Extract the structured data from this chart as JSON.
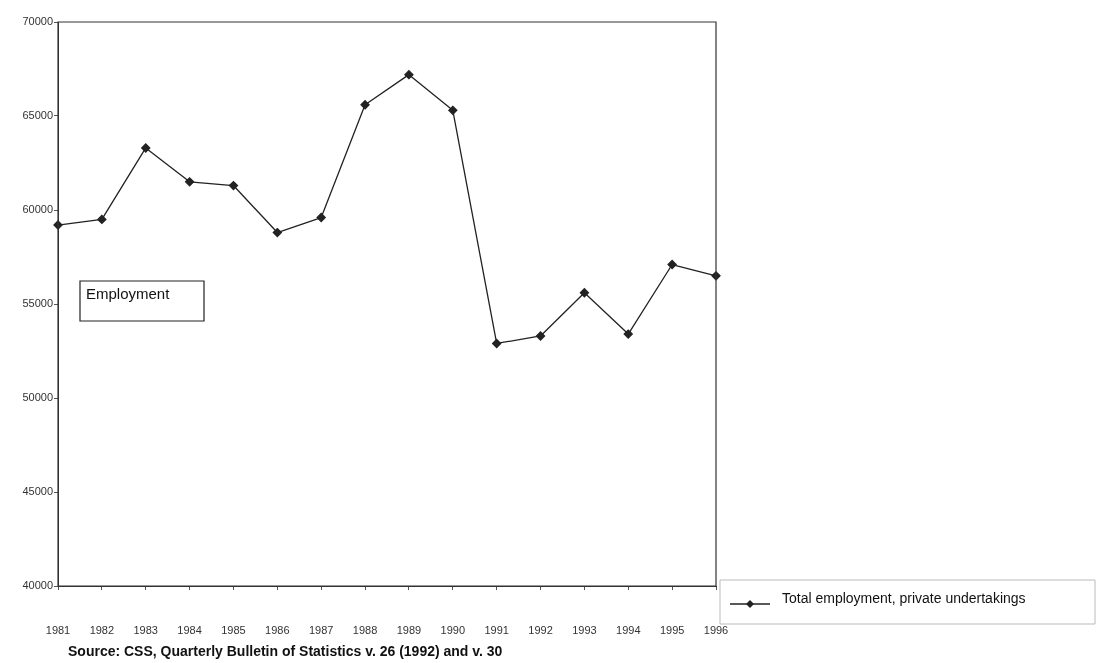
{
  "chart_data": {
    "type": "line",
    "categories": [
      "1981",
      "1982",
      "1983",
      "1984",
      "1985",
      "1986",
      "1987",
      "1988",
      "1989",
      "1990",
      "1991",
      "1992",
      "1993",
      "1994",
      "1995",
      "1996"
    ],
    "series": [
      {
        "name": "Total employment, private undertakings",
        "color": "#222222",
        "values": [
          59200,
          59500,
          63300,
          61500,
          61300,
          58800,
          59600,
          65600,
          67200,
          65300,
          52900,
          53300,
          55600,
          53400,
          57100,
          56500
        ]
      }
    ],
    "ylim": [
      40000,
      70000
    ],
    "yticks": [
      40000,
      45000,
      50000,
      55000,
      60000,
      65000,
      70000
    ],
    "grid": false,
    "legend": "bottom right",
    "marker": "diamond",
    "line_style": "solid",
    "annotations": [
      "Employment",
      "Source: CSS, Quarterly Bulletin of Statistics v. 26 (1992) and v. 30"
    ]
  }
}
